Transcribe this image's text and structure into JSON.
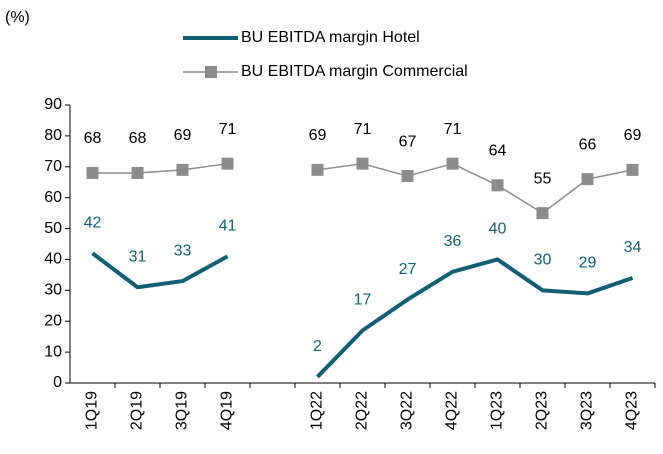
{
  "chart_data": {
    "type": "line",
    "y_label": "(%)",
    "categories": [
      "1Q19",
      "2Q19",
      "3Q19",
      "4Q19",
      null,
      "1Q22",
      "2Q22",
      "3Q22",
      "4Q22",
      "1Q23",
      "2Q23",
      "3Q23",
      "4Q23"
    ],
    "series": [
      {
        "name": "BU EBITDA margin Hotel",
        "color": "#125f74",
        "values": [
          42,
          31,
          33,
          41,
          null,
          2,
          17,
          27,
          36,
          40,
          30,
          29,
          34
        ]
      },
      {
        "name": "BU EBITDA margin Commercial",
        "color": "#8c8c8c",
        "values": [
          68,
          68,
          69,
          71,
          null,
          69,
          71,
          67,
          71,
          64,
          55,
          66,
          69
        ]
      }
    ],
    "ylim": [
      0,
      90
    ],
    "yticks": [
      0,
      10,
      20,
      30,
      40,
      50,
      60,
      70,
      80,
      90
    ],
    "grid": false
  }
}
